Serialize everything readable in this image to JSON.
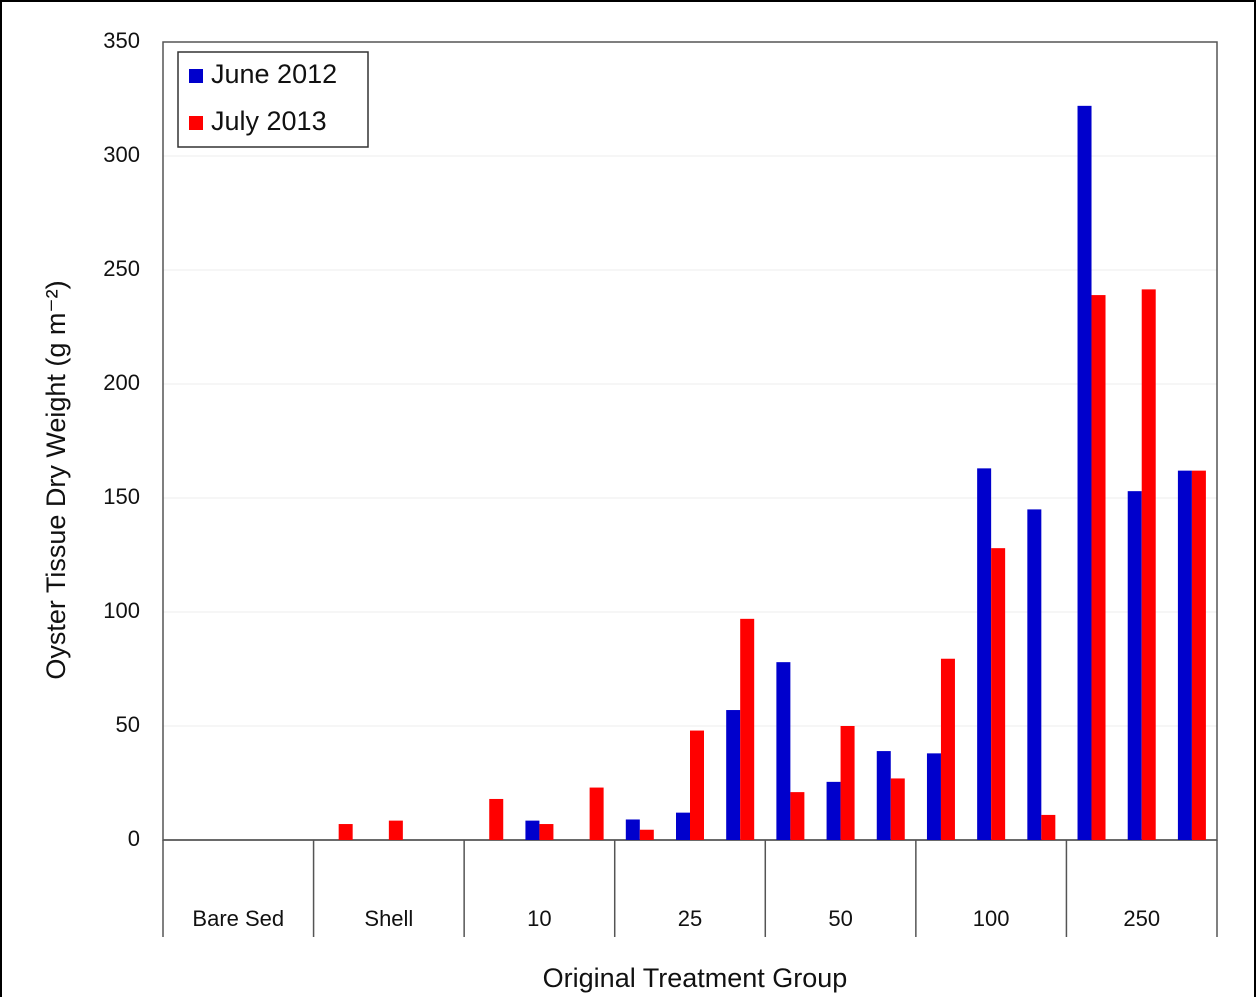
{
  "chart_data": {
    "type": "bar",
    "xlabel": "Original Treatment Group",
    "ylabel": "Oyster Tissue Dry Weight (g m⁻²)",
    "categories": [
      "Bare Sed",
      "Shell",
      "10",
      "25",
      "50",
      "100",
      "250"
    ],
    "series": [
      {
        "name": "June 2012",
        "color": "#0000cc",
        "values": [
          [
            0,
            0,
            0
          ],
          [
            0,
            0,
            0
          ],
          [
            0,
            8.5,
            0
          ],
          [
            9,
            12,
            57
          ],
          [
            78,
            25.5,
            39
          ],
          [
            38,
            163,
            145
          ],
          [
            322,
            153,
            162
          ]
        ]
      },
      {
        "name": "July 2013",
        "color": "#ff0000",
        "values": [
          [
            0,
            0,
            0
          ],
          [
            7,
            8.5,
            0
          ],
          [
            18,
            7,
            23
          ],
          [
            4.5,
            48,
            97
          ],
          [
            21,
            50,
            27
          ],
          [
            79.5,
            128,
            11
          ],
          [
            239,
            241.5,
            162
          ]
        ]
      }
    ],
    "ylim": [
      0,
      350
    ],
    "yticks": [
      0,
      50,
      100,
      150,
      200,
      250,
      300,
      350
    ],
    "grid": true,
    "legend": "upper left"
  }
}
